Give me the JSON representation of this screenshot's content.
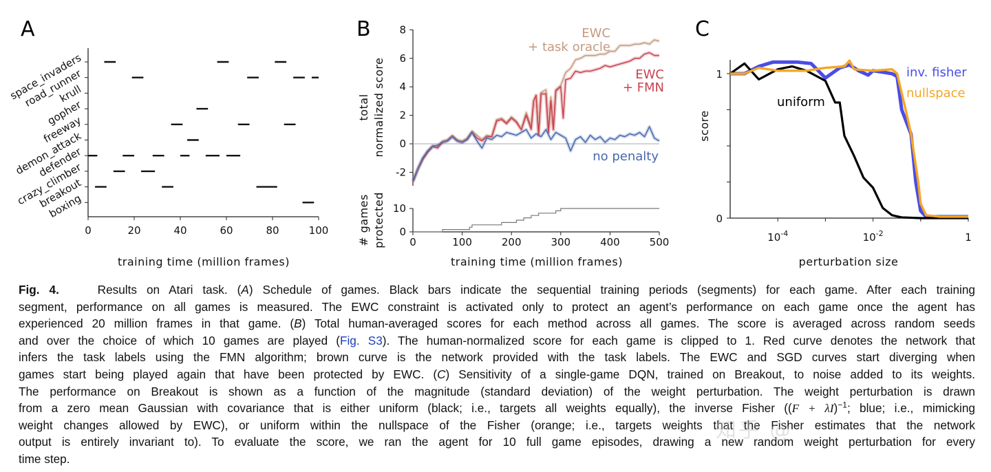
{
  "panels": {
    "a": {
      "letter": "A",
      "xlabel": "training time (million frames)"
    },
    "b": {
      "letter": "B",
      "ylabel_line1": "total",
      "ylabel_line2": "normalized score",
      "ylabel2_line1": "# games",
      "ylabel2_line2": "protected",
      "xlabel": "training time (million frames)",
      "label_oracle_1": "EWC",
      "label_oracle_2": "+ task oracle",
      "label_fmn_1": "EWC",
      "label_fmn_2": "+ FMN",
      "label_nopenalty": "no penalty"
    },
    "c": {
      "letter": "C",
      "ylabel": "score",
      "xlabel": "perturbation size",
      "label_uniform": "uniform",
      "label_fisher": "inv. fisher",
      "label_nullspace": "nullspace"
    }
  },
  "colors": {
    "oracle": "#c49a7e",
    "fmn": "#c9424f",
    "nopenalty": "#4768ae",
    "protected": "#777777",
    "uniform": "#000000",
    "fisher": "#4b4ce6",
    "nullspace": "#f5a623",
    "link": "#1f3fb8"
  },
  "chart_data": [
    {
      "type": "bar",
      "panel": "A",
      "xlabel": "training time (million frames)",
      "xlim": [
        0,
        100
      ],
      "xticks": [
        "0",
        "20",
        "40",
        "60",
        "80",
        "100"
      ],
      "categories": [
        "space_invaders",
        "road_runner",
        "krull",
        "gopher",
        "freeway",
        "demon_attack",
        "defender",
        "crazy_climber",
        "breakout",
        "boxing"
      ],
      "segments": [
        [
          [
            7,
            12
          ],
          [
            56,
            61
          ],
          [
            81,
            86
          ]
        ],
        [
          [
            19,
            24
          ],
          [
            69,
            74
          ],
          [
            89,
            94
          ],
          [
            97,
            100
          ]
        ],
        [],
        [
          [
            47,
            52
          ]
        ],
        [
          [
            36,
            41
          ],
          [
            65,
            70
          ],
          [
            85,
            90
          ]
        ],
        [
          [
            43,
            48
          ]
        ],
        [
          [
            0,
            4
          ],
          [
            15,
            20
          ],
          [
            28,
            33
          ],
          [
            40,
            44
          ],
          [
            51,
            57
          ],
          [
            60,
            66
          ]
        ],
        [
          [
            11,
            16
          ],
          [
            23,
            29
          ]
        ],
        [
          [
            3,
            8
          ],
          [
            32,
            37
          ],
          [
            73,
            82
          ]
        ],
        [
          [
            93,
            98
          ]
        ]
      ]
    },
    {
      "type": "line",
      "panel": "B",
      "xlabel": "training time (million frames)",
      "ylabel": "total normalized score",
      "xlim": [
        0,
        500
      ],
      "ylim": [
        -3.3,
        8
      ],
      "xticks": [
        "0",
        "100",
        "200",
        "300",
        "400",
        "500"
      ],
      "yticks": [
        "-2",
        "0",
        "2",
        "4",
        "6",
        "8"
      ],
      "series": [
        {
          "name": "EWC + task oracle",
          "x": [
            0,
            10,
            20,
            30,
            40,
            50,
            60,
            70,
            80,
            90,
            100,
            110,
            120,
            130,
            140,
            150,
            160,
            170,
            180,
            190,
            200,
            210,
            220,
            230,
            240,
            245,
            250,
            255,
            260,
            270,
            275,
            280,
            285,
            290,
            300,
            310,
            320,
            330,
            340,
            350,
            360,
            370,
            380,
            390,
            400,
            410,
            420,
            430,
            440,
            450,
            460,
            470,
            480,
            490,
            500
          ],
          "y": [
            -2.6,
            -1.7,
            -1,
            -0.5,
            -0.1,
            -0.2,
            0.2,
            0.3,
            0.6,
            0.3,
            0.2,
            0.4,
            0.9,
            0.6,
            0.3,
            0.6,
            0.5,
            1.7,
            1.8,
            1.5,
            1.9,
            1.6,
            1.0,
            2.2,
            1.2,
            3.0,
            3.4,
            0.7,
            3.6,
            3.8,
            0.8,
            3.3,
            1.0,
            3.8,
            4.1,
            5.0,
            5.3,
            5.9,
            6.0,
            6.2,
            6.2,
            6.2,
            6.3,
            6.3,
            6.5,
            6.5,
            6.9,
            6.9,
            6.9,
            7.0,
            7.0,
            7.1,
            7.0,
            7.3,
            7.2
          ]
        },
        {
          "name": "EWC + FMN",
          "x": [
            0,
            10,
            20,
            30,
            40,
            50,
            60,
            70,
            80,
            90,
            100,
            110,
            120,
            130,
            140,
            150,
            160,
            170,
            180,
            190,
            200,
            210,
            220,
            230,
            240,
            245,
            250,
            255,
            260,
            270,
            275,
            280,
            285,
            290,
            300,
            305,
            310,
            320,
            330,
            340,
            350,
            360,
            370,
            380,
            390,
            400,
            410,
            420,
            430,
            440,
            450,
            460,
            470,
            480,
            490,
            500
          ],
          "y": [
            -2.7,
            -1.8,
            -1.1,
            -0.6,
            -0.2,
            -0.3,
            0.1,
            0.2,
            0.5,
            0.2,
            0.1,
            0.3,
            0.8,
            0.4,
            0.2,
            0.5,
            0.5,
            1.6,
            1.7,
            1.4,
            1.8,
            1.5,
            1.0,
            2.0,
            1.0,
            3.0,
            3.4,
            0.6,
            3.5,
            3.5,
            0.8,
            3.0,
            1.0,
            3.7,
            4.0,
            1.8,
            4.5,
            4.6,
            5.1,
            5.0,
            5.1,
            5.1,
            5.2,
            5.3,
            5.5,
            5.4,
            5.5,
            5.6,
            5.7,
            5.8,
            6.0,
            6.0,
            6.3,
            6.4,
            6.2,
            6.2
          ]
        },
        {
          "name": "no penalty",
          "x": [
            0,
            10,
            20,
            30,
            40,
            50,
            60,
            70,
            80,
            90,
            100,
            110,
            120,
            130,
            140,
            150,
            160,
            170,
            180,
            190,
            200,
            210,
            220,
            230,
            240,
            250,
            260,
            270,
            280,
            290,
            300,
            310,
            320,
            330,
            340,
            350,
            360,
            370,
            380,
            390,
            400,
            410,
            420,
            430,
            440,
            450,
            460,
            470,
            480,
            490,
            500
          ],
          "y": [
            -2.6,
            -1.8,
            -1,
            -0.5,
            -0.2,
            -0.1,
            0.1,
            0.2,
            0.5,
            0.2,
            0.1,
            0.3,
            0.8,
            0.2,
            -0.3,
            0.4,
            0.3,
            0.6,
            0.5,
            0.8,
            0.7,
            0.6,
            0.8,
            1.0,
            0.4,
            0.7,
            0.5,
            1.0,
            0.3,
            0.8,
            0.6,
            0.4,
            -0.5,
            0.3,
            0.5,
            0.1,
            0.6,
            0.3,
            0.5,
            0.1,
            0.4,
            0.3,
            0.6,
            0.5,
            0.7,
            0.6,
            0.8,
            0.5,
            1.2,
            0.4,
            0.2
          ]
        }
      ],
      "reference_line_y": 0
    },
    {
      "type": "line",
      "panel": "B",
      "ylabel": "# games protected",
      "xlim": [
        0,
        500
      ],
      "ylim": [
        0,
        10
      ],
      "yticks": [
        "0",
        "10"
      ],
      "series": [
        {
          "name": "",
          "x": [
            0,
            60,
            115,
            120,
            180,
            210,
            225,
            240,
            255,
            290,
            300,
            500
          ],
          "y": [
            0,
            1,
            2,
            3,
            4,
            5,
            6,
            7,
            8,
            9,
            10,
            10
          ],
          "step": true
        }
      ]
    },
    {
      "type": "line",
      "panel": "C",
      "xlabel": "perturbation size",
      "ylabel": "score",
      "xscale": "log",
      "xlim": [
        1e-05,
        1
      ],
      "ylim": [
        0,
        1.1
      ],
      "xticks": [
        "10^-4",
        "10^-2",
        "1"
      ],
      "yticks": [
        "0",
        "1"
      ],
      "series": [
        {
          "name": "uniform",
          "x": [
            1e-05,
            2e-05,
            4e-05,
            0.0001,
            0.0002,
            0.0004,
            0.001,
            0.0016,
            0.002,
            0.0025,
            0.004,
            0.0063,
            0.01,
            0.016,
            0.025,
            0.04,
            0.1,
            1
          ],
          "y": [
            1.0,
            1.07,
            0.96,
            1.03,
            1.05,
            1.02,
            0.95,
            0.8,
            0.8,
            0.57,
            0.43,
            0.28,
            0.21,
            0.07,
            0.02,
            0.005,
            0,
            0
          ]
        },
        {
          "name": "inv. fisher",
          "x": [
            1e-05,
            2e-05,
            4e-05,
            8e-05,
            0.00025,
            0.0005,
            0.001,
            0.002,
            0.0032,
            0.005,
            0.0079,
            0.01,
            0.016,
            0.025,
            0.032,
            0.04,
            0.063,
            0.079,
            0.1,
            0.13,
            1
          ],
          "y": [
            1.0,
            1.0,
            1.05,
            1.08,
            1.08,
            1.07,
            0.97,
            1.04,
            1.06,
            1.02,
            0.99,
            1.02,
            1.01,
            1.0,
            0.98,
            0.75,
            0.58,
            0.25,
            0.05,
            0.01,
            0.01
          ]
        },
        {
          "name": "nullspace",
          "x": [
            1e-05,
            2e-05,
            4e-05,
            0.0001,
            0.0004,
            0.001,
            0.0025,
            0.0032,
            0.004,
            0.01,
            0.025,
            0.032,
            0.05,
            0.063,
            0.089,
            0.1,
            0.13,
            0.25,
            1
          ],
          "y": [
            1.0,
            1.0,
            1.04,
            1.02,
            1.02,
            1.04,
            1.05,
            1.09,
            1.03,
            1.02,
            1.03,
            1.0,
            0.73,
            0.58,
            0.25,
            0.1,
            0.02,
            0.01,
            0.01
          ]
        }
      ]
    }
  ],
  "caption": {
    "lines": [
      [
        {
          "t": "Fig. 4.",
          "s": "bold"
        },
        {
          "t": "    Results on Atari task. (",
          "s": ""
        },
        {
          "t": "A",
          "s": "italic"
        },
        {
          "t": ") Schedule of games. Black bars indicate the sequential training periods (segments) for each game. After each training",
          "s": ""
        }
      ],
      [
        {
          "t": "segment, performance on all games is measured. The EWC constraint is activated only to protect an agent’s performance on each game once the agent has",
          "s": ""
        }
      ],
      [
        {
          "t": "experienced 20 million frames in that game. (",
          "s": ""
        },
        {
          "t": "B",
          "s": "italic"
        },
        {
          "t": ") Total human-averaged scores for each method across all games. The score is averaged across random seeds",
          "s": ""
        }
      ],
      [
        {
          "t": "and over the choice of which 10 games are played (",
          "s": ""
        },
        {
          "t": "Fig. S3",
          "s": "link"
        },
        {
          "t": "). The human-normalized score for each game is clipped to 1. Red curve denotes the network that",
          "s": ""
        }
      ],
      [
        {
          "t": "infers the task labels using the FMN algorithm; brown curve is the network provided with the task labels. The EWC and SGD curves start diverging when",
          "s": ""
        }
      ],
      [
        {
          "t": "games start being played again that have been protected by EWC. (",
          "s": ""
        },
        {
          "t": "C",
          "s": "italic"
        },
        {
          "t": ") Sensitivity of a single-game DQN, trained on Breakout, to noise added to its weights.",
          "s": ""
        }
      ],
      [
        {
          "t": "The performance on Breakout is shown as a function of the magnitude (standard deviation) of the weight perturbation. The weight perturbation is drawn",
          "s": ""
        }
      ],
      [
        {
          "t": "from a zero mean Gaussian with covariance that is either uniform (black; i.e., targets all weights equally), the inverse Fisher ((",
          "s": ""
        },
        {
          "t": "F + λI",
          "s": "math"
        },
        {
          "t": ")",
          "s": ""
        },
        {
          "t": "−1",
          "s": "sup"
        },
        {
          "t": "; blue; i.e., mimicking",
          "s": ""
        }
      ],
      [
        {
          "t": "weight changes allowed by EWC), or uniform within the nullspace of the Fisher (orange; i.e., targets weights that the Fisher estimates that the network",
          "s": ""
        }
      ],
      [
        {
          "t": "output is entirely invariant to). To evaluate the score, we ran the agent for 10 full game episodes, drawing a new random weight perturbation for every",
          "s": ""
        }
      ],
      [
        {
          "t": "time step.",
          "s": ""
        }
      ]
    ]
  },
  "watermark": "知乎 @"
}
